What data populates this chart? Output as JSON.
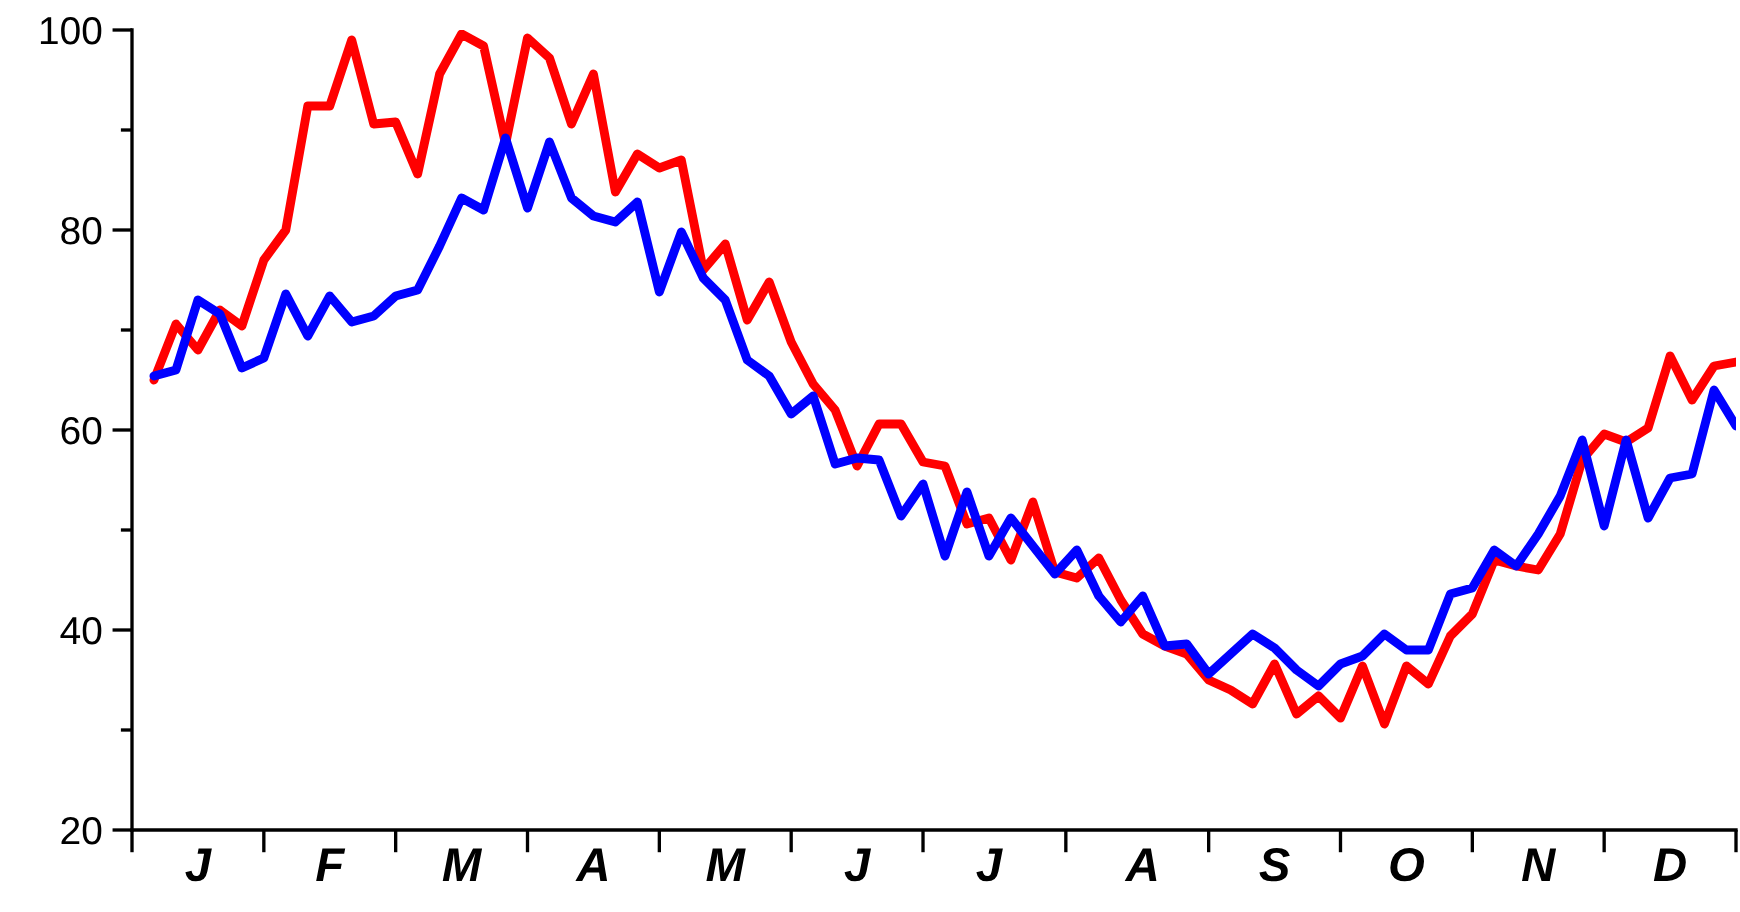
{
  "chart_data": {
    "type": "line",
    "categories": [
      null,
      null,
      "J",
      null,
      null,
      null,
      null,
      null,
      "F",
      null,
      null,
      null,
      null,
      null,
      "M",
      null,
      null,
      null,
      null,
      null,
      "A",
      null,
      null,
      null,
      null,
      null,
      "M",
      null,
      null,
      null,
      null,
      null,
      "J",
      null,
      null,
      null,
      null,
      null,
      "J",
      null,
      null,
      null,
      null,
      null,
      null,
      "A",
      null,
      null,
      null,
      null,
      null,
      "S",
      null,
      null,
      null,
      null,
      null,
      "O",
      null,
      null,
      null,
      null,
      null,
      "N",
      null,
      null,
      null,
      null,
      null,
      "D",
      null,
      null,
      null
    ],
    "series": [
      {
        "color": "#ff0000",
        "values": [
          65,
          70.6,
          68,
          72,
          70.4,
          77,
          80,
          92.4,
          92.4,
          99,
          90.6,
          90.8,
          85.6,
          95.6,
          99.6,
          98.4,
          88.6,
          99.2,
          97.2,
          90.6,
          95.6,
          83.8,
          87.6,
          86.2,
          87,
          76,
          78.6,
          71,
          74.8,
          68.8,
          64.6,
          62,
          56.4,
          60.6,
          60.6,
          56.8,
          56.4,
          50.6,
          51.2,
          47,
          52.8,
          45.8,
          45.2,
          47.2,
          43,
          39.6,
          38.4,
          37.6,
          35,
          34,
          32.6,
          36.6,
          31.6,
          33.4,
          31.2,
          36.4,
          30.6,
          36.4,
          34.6,
          39.4,
          41.6,
          47,
          46.4,
          46,
          49.6,
          57,
          59.6,
          58.8,
          60.2,
          67.4,
          63,
          66.4,
          66.8
        ]
      },
      {
        "color": "#0000ff",
        "values": [
          65.4,
          66,
          73,
          71.6,
          66.2,
          67.2,
          73.6,
          69.4,
          73.4,
          70.8,
          71.4,
          73.4,
          74,
          78.4,
          83.2,
          82,
          89.2,
          82.2,
          88.8,
          83.2,
          81.4,
          80.8,
          82.8,
          73.8,
          79.8,
          75.2,
          73,
          67,
          65.4,
          61.6,
          63.4,
          56.6,
          57.2,
          57,
          51.4,
          54.6,
          47.4,
          53.8,
          47.4,
          51.2,
          48.4,
          45.6,
          48,
          43.4,
          40.8,
          43.4,
          38.4,
          38.6,
          35.6,
          37.6,
          39.6,
          38.2,
          36,
          34.4,
          36.6,
          37.4,
          39.6,
          38,
          38,
          43.6,
          44.2,
          48,
          46.4,
          49.6,
          53.4,
          59,
          50.4,
          59,
          51.2,
          55.2,
          55.6,
          64,
          60.4
        ]
      }
    ],
    "ylim": [
      20,
      100
    ],
    "yticks": [
      20,
      {
        "value": 30,
        "label": null
      },
      40,
      {
        "value": 50,
        "label": null
      },
      60,
      {
        "value": 70,
        "label": null
      },
      80,
      {
        "value": 90,
        "label": null
      },
      100
    ],
    "marker": "none",
    "line_style": "solid"
  }
}
